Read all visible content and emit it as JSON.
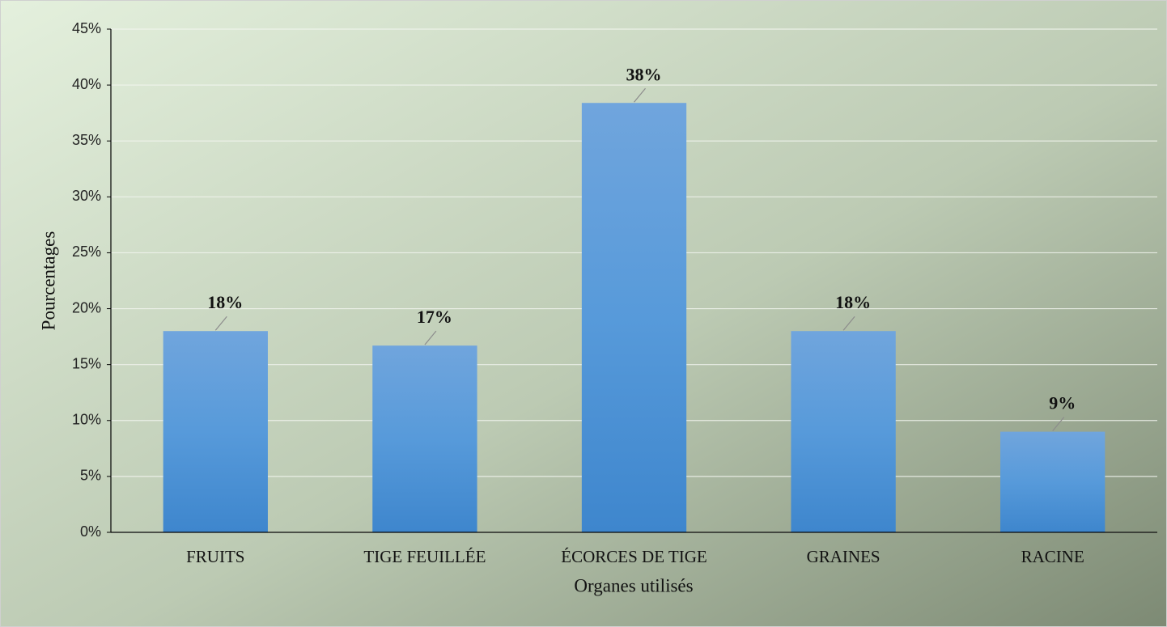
{
  "chart_data": {
    "type": "bar",
    "x_label": "Organes utilisés",
    "y_label": "Pourcentages",
    "categories": [
      "FRUITS",
      "TIGE FEUILLÉE",
      "ÉCORCES DE TIGE",
      "GRAINES",
      "RACINE"
    ],
    "values": [
      18,
      16.7,
      38.4,
      18,
      9
    ],
    "value_labels": [
      "18%",
      "17%",
      "38%",
      "18%",
      "9%"
    ],
    "color": "#5b9bd5",
    "ylim": [
      0,
      45
    ],
    "yticks": [
      {
        "value": 0,
        "label": "0%"
      },
      {
        "value": 5,
        "label": "5%"
      },
      {
        "value": 10,
        "label": "10%"
      },
      {
        "value": 15,
        "label": "15%"
      },
      {
        "value": 20,
        "label": "20%"
      },
      {
        "value": 25,
        "label": "25%"
      },
      {
        "value": 30,
        "label": "30%"
      },
      {
        "value": 35,
        "label": "35%"
      },
      {
        "value": 40,
        "label": "40%"
      },
      {
        "value": 45,
        "label": "45%"
      }
    ],
    "grid": true
  }
}
